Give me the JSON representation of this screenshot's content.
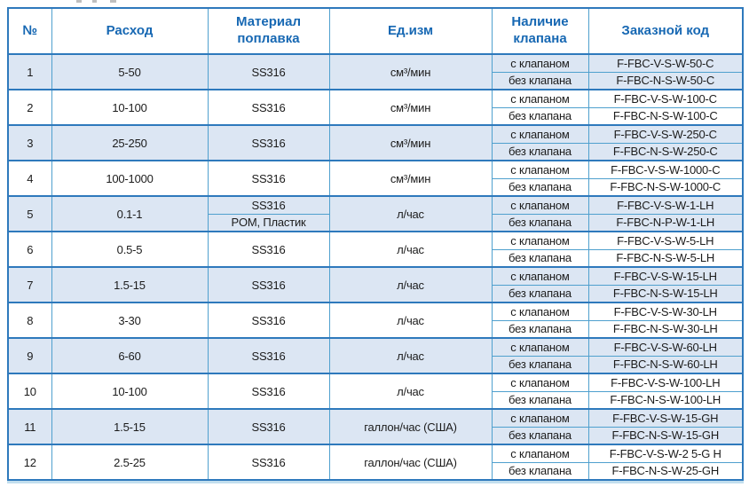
{
  "colors": {
    "header_text": "#1768B3",
    "grid_line": "#4FA0CE",
    "outer_border": "#2E79BC",
    "shaded_row_bg": "#DCE6F3",
    "cell_text": "#1C1C1C"
  },
  "labels": {
    "valve_with": "с клапаном",
    "valve_without": "без клапана"
  },
  "table": {
    "headers": [
      "№",
      "Расход",
      "Материал поплавка",
      "Ед.изм",
      "Наличие клапана",
      "Заказной код"
    ],
    "rows": [
      {
        "num": "1",
        "flow": "5-50",
        "materials": [
          "SS316"
        ],
        "unit": "см³/мин",
        "codes": [
          "F-FBC-V-S-W-50-C",
          "F-FBC-N-S-W-50-C"
        ],
        "shaded": true
      },
      {
        "num": "2",
        "flow": "10-100",
        "materials": [
          "SS316"
        ],
        "unit": "см³/мин",
        "codes": [
          "F-FBC-V-S-W-100-C",
          "F-FBC-N-S-W-100-C"
        ],
        "shaded": false
      },
      {
        "num": "3",
        "flow": "25-250",
        "materials": [
          "SS316"
        ],
        "unit": "см³/мин",
        "codes": [
          "F-FBC-V-S-W-250-C",
          "F-FBC-N-S-W-250-C"
        ],
        "shaded": true
      },
      {
        "num": "4",
        "flow": "100-1000",
        "materials": [
          "SS316"
        ],
        "unit": "см³/мин",
        "codes": [
          "F-FBC-V-S-W-1000-C",
          "F-FBC-N-S-W-1000-C"
        ],
        "shaded": false
      },
      {
        "num": "5",
        "flow": "0.1-1",
        "materials": [
          "SS316",
          "POM, Пластик"
        ],
        "unit": "л/час",
        "codes": [
          "F-FBC-V-S-W-1-LH",
          "F-FBC-N-P-W-1-LH"
        ],
        "shaded": true
      },
      {
        "num": "6",
        "flow": "0.5-5",
        "materials": [
          "SS316"
        ],
        "unit": "л/час",
        "codes": [
          "F-FBC-V-S-W-5-LH",
          "F-FBC-N-S-W-5-LH"
        ],
        "shaded": false
      },
      {
        "num": "7",
        "flow": "1.5-15",
        "materials": [
          "SS316"
        ],
        "unit": "л/час",
        "codes": [
          "F-FBC-V-S-W-15-LH",
          "F-FBC-N-S-W-15-LH"
        ],
        "shaded": true
      },
      {
        "num": "8",
        "flow": "3-30",
        "materials": [
          "SS316"
        ],
        "unit": "л/час",
        "codes": [
          "F-FBC-V-S-W-30-LH",
          "F-FBC-N-S-W-30-LH"
        ],
        "shaded": false
      },
      {
        "num": "9",
        "flow": "6-60",
        "materials": [
          "SS316"
        ],
        "unit": "л/час",
        "codes": [
          "F-FBC-V-S-W-60-LH",
          "F-FBC-N-S-W-60-LH"
        ],
        "shaded": true
      },
      {
        "num": "10",
        "flow": "10-100",
        "materials": [
          "SS316"
        ],
        "unit": "л/час",
        "codes": [
          "F-FBC-V-S-W-100-LH",
          "F-FBC-N-S-W-100-LH"
        ],
        "shaded": false
      },
      {
        "num": "11",
        "flow": "1.5-15",
        "materials": [
          "SS316"
        ],
        "unit": "галлон/час (США)",
        "codes": [
          "F-FBC-V-S-W-15-GH",
          "F-FBC-N-S-W-15-GH"
        ],
        "shaded": true
      },
      {
        "num": "12",
        "flow": "2.5-25",
        "materials": [
          "SS316"
        ],
        "unit": "галлон/час (США)",
        "codes": [
          "F-FBC-V-S-W-2 5-G H",
          "F-FBC-N-S-W-25-GH"
        ],
        "shaded": false
      }
    ]
  }
}
